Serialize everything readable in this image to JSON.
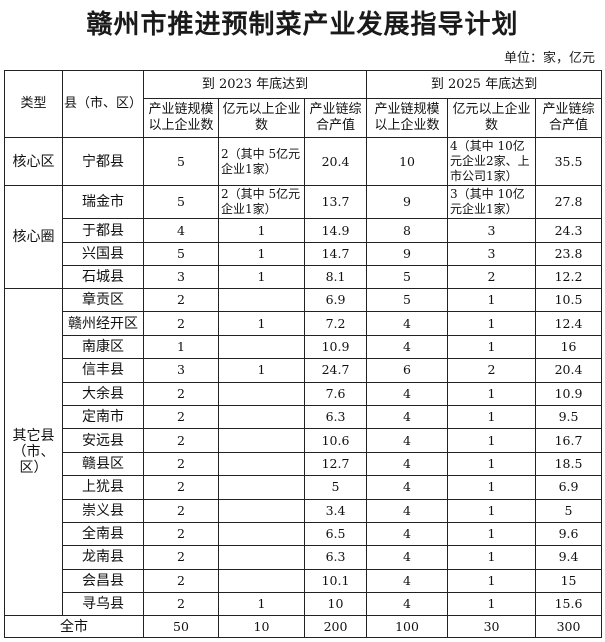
{
  "title": "赣州市推进预制菜产业发展指导计划",
  "unit": "单位：家，亿元",
  "header": {
    "type": "类型",
    "county": "县（市、区）",
    "group_2023": "到 2023 年底达到",
    "group_2025": "到 2025 年底达到",
    "cols": [
      "产业链规模以上企业数",
      "亿元以上企业数",
      "产业链综合产值",
      "产业链规模以上企业数",
      "亿元以上企业数",
      "产业链综合产值"
    ]
  },
  "groups": [
    {
      "type": "核心区",
      "rows": [
        {
          "county": "宁都县",
          "values": [
            "5",
            "2（其中 5亿元企业1家）",
            "20.4",
            "10",
            "4（其中 10亿元企业2家、上市公司1家）",
            "35.5"
          ]
        }
      ]
    },
    {
      "type": "核心圈",
      "rows": [
        {
          "county": "瑞金市",
          "values": [
            "5",
            "2（其中 5亿元企业1家）",
            "13.7",
            "9",
            "3（其中 10亿元企业1家）",
            "27.8"
          ]
        },
        {
          "county": "于都县",
          "values": [
            "4",
            "1",
            "14.9",
            "8",
            "3",
            "24.3"
          ]
        },
        {
          "county": "兴国县",
          "values": [
            "5",
            "1",
            "14.7",
            "9",
            "3",
            "23.8"
          ]
        },
        {
          "county": "石城县",
          "values": [
            "3",
            "1",
            "8.1",
            "5",
            "2",
            "12.2"
          ]
        }
      ]
    },
    {
      "type": "其它县（市、区）",
      "rows": [
        {
          "county": "章贡区",
          "values": [
            "2",
            "",
            "6.9",
            "5",
            "1",
            "10.5"
          ]
        },
        {
          "county": "赣州经开区",
          "values": [
            "2",
            "1",
            "7.2",
            "4",
            "1",
            "12.4"
          ]
        },
        {
          "county": "南康区",
          "values": [
            "1",
            "",
            "10.9",
            "4",
            "1",
            "16"
          ]
        },
        {
          "county": "信丰县",
          "values": [
            "3",
            "1",
            "24.7",
            "6",
            "2",
            "20.4"
          ]
        },
        {
          "county": "大余县",
          "values": [
            "2",
            "",
            "7.6",
            "4",
            "1",
            "10.9"
          ]
        },
        {
          "county": "定南市",
          "values": [
            "2",
            "",
            "6.3",
            "4",
            "1",
            "9.5"
          ]
        },
        {
          "county": "安远县",
          "values": [
            "2",
            "",
            "10.6",
            "4",
            "1",
            "16.7"
          ]
        },
        {
          "county": "赣县区",
          "values": [
            "2",
            "",
            "12.7",
            "4",
            "1",
            "18.5"
          ]
        },
        {
          "county": "上犹县",
          "values": [
            "2",
            "",
            "5",
            "4",
            "1",
            "6.9"
          ]
        },
        {
          "county": "崇义县",
          "values": [
            "2",
            "",
            "3.4",
            "4",
            "1",
            "5"
          ]
        },
        {
          "county": "全南县",
          "values": [
            "2",
            "",
            "6.5",
            "4",
            "1",
            "9.6"
          ]
        },
        {
          "county": "龙南县",
          "values": [
            "2",
            "",
            "6.3",
            "4",
            "1",
            "9.4"
          ]
        },
        {
          "county": "会昌县",
          "values": [
            "2",
            "",
            "10.1",
            "4",
            "1",
            "15"
          ]
        },
        {
          "county": "寻乌县",
          "values": [
            "2",
            "1",
            "10",
            "4",
            "1",
            "15.6"
          ]
        }
      ]
    }
  ],
  "total": {
    "label": "全市",
    "values": [
      "50",
      "10",
      "200",
      "100",
      "30",
      "300"
    ]
  }
}
